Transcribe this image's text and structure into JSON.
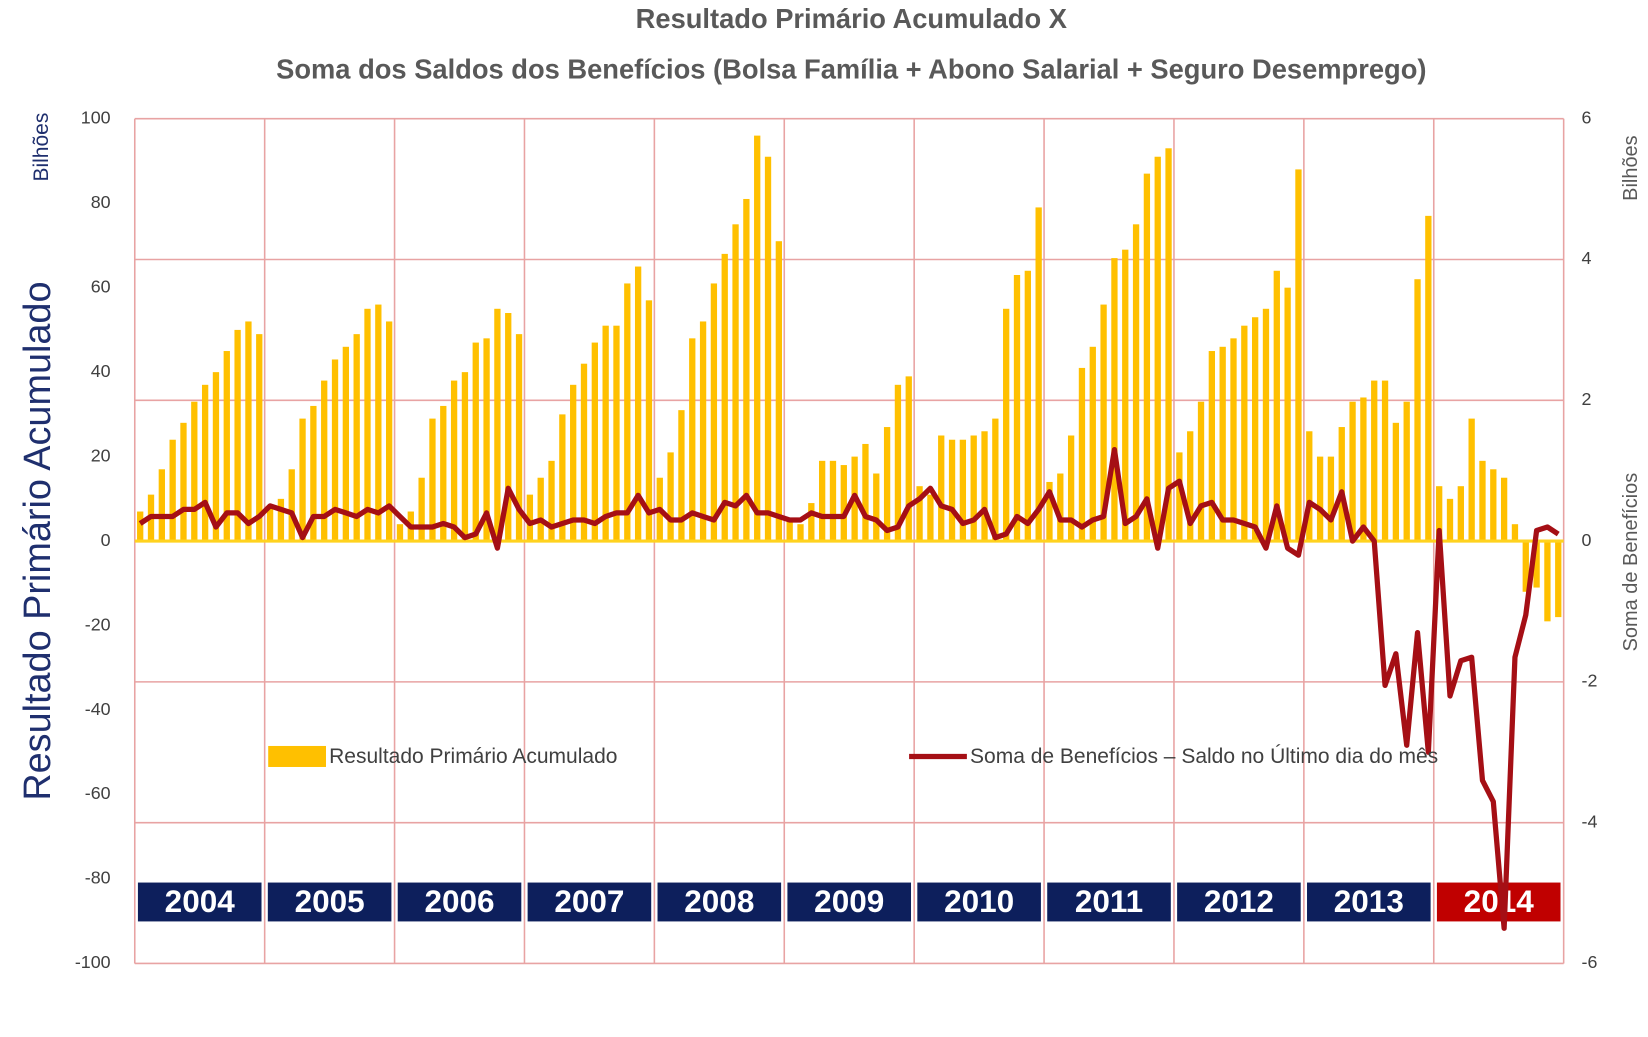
{
  "chart_data": {
    "type": "combo",
    "title": "Resultado Primário Acumulado X",
    "subtitle": "Soma dos Saldos dos Benefícios (Bolsa Família + Abono Salarial + Seguro Desemprego)",
    "ylabel": "Resultado Primário Acumulado",
    "yunit": "Bilhões",
    "y2label": "Soma de Benefícios",
    "y2unit": "Bilhões",
    "ylim": [
      -100,
      100
    ],
    "yticks": [
      100,
      80,
      60,
      40,
      20,
      0,
      -20,
      -40,
      -60,
      -80,
      -100
    ],
    "y2lim": [
      -6,
      6
    ],
    "y2ticks": [
      6,
      4,
      2,
      0,
      -2,
      -4,
      -6
    ],
    "grid": true,
    "grid_color": "#e8a3a3",
    "legend": "bottom",
    "categories": [
      "2004",
      null,
      null,
      null,
      null,
      null,
      null,
      null,
      null,
      null,
      null,
      null,
      "2005",
      null,
      null,
      null,
      null,
      null,
      null,
      null,
      null,
      null,
      null,
      null,
      "2006",
      null,
      null,
      null,
      null,
      null,
      null,
      null,
      null,
      null,
      null,
      null,
      "2007",
      null,
      null,
      null,
      null,
      null,
      null,
      null,
      null,
      null,
      null,
      null,
      "2008",
      null,
      null,
      null,
      null,
      null,
      null,
      null,
      null,
      null,
      null,
      null,
      "2009",
      null,
      null,
      null,
      null,
      null,
      null,
      null,
      null,
      null,
      null,
      null,
      "2010",
      null,
      null,
      null,
      null,
      null,
      null,
      null,
      null,
      null,
      null,
      null,
      "2011",
      null,
      null,
      null,
      null,
      null,
      null,
      null,
      null,
      null,
      null,
      null,
      "2012",
      null,
      null,
      null,
      null,
      null,
      null,
      null,
      null,
      null,
      null,
      null,
      "2013",
      null,
      null,
      null,
      null,
      null,
      null,
      null,
      null,
      null,
      null,
      null,
      "2014",
      null,
      null,
      null,
      null,
      null,
      null,
      null,
      null,
      null,
      null,
      null
    ],
    "category_colors": [
      "#0d1f5c",
      "#0d1f5c",
      "#0d1f5c",
      "#0d1f5c",
      "#0d1f5c",
      "#0d1f5c",
      "#0d1f5c",
      "#0d1f5c",
      "#0d1f5c",
      "#0d1f5c",
      "#c00000"
    ],
    "series": [
      {
        "name": "Resultado Primário Acumulado",
        "type": "bar",
        "color": "#ffc000",
        "values": [
          7,
          11,
          17,
          24,
          28,
          33,
          37,
          40,
          45,
          50,
          52,
          49,
          8,
          10,
          17,
          29,
          32,
          38,
          43,
          46,
          49,
          55,
          56,
          52,
          4,
          7,
          15,
          29,
          32,
          38,
          40,
          47,
          48,
          55,
          54,
          49,
          11,
          15,
          19,
          30,
          37,
          42,
          47,
          51,
          51,
          61,
          65,
          57,
          15,
          21,
          31,
          48,
          52,
          61,
          68,
          75,
          81,
          96,
          91,
          71,
          5,
          4,
          9,
          19,
          19,
          18,
          20,
          23,
          16,
          27,
          37,
          39,
          13,
          11,
          25,
          24,
          24,
          25,
          26,
          29,
          55,
          63,
          64,
          79,
          14,
          16,
          25,
          41,
          46,
          56,
          67,
          69,
          75,
          87,
          91,
          93,
          21,
          26,
          33,
          45,
          46,
          48,
          51,
          53,
          55,
          64,
          60,
          88,
          26,
          20,
          20,
          27,
          33,
          34,
          38,
          38,
          28,
          33,
          62,
          77,
          13,
          10,
          13,
          29,
          19,
          17,
          15,
          4,
          -12,
          -11,
          -19,
          -18
        ]
      },
      {
        "name": "Soma de Benefícios – Saldo no Último dia do mês",
        "type": "line",
        "axis": "y2",
        "color": "#a50f15",
        "values": [
          0.25,
          0.35,
          0.35,
          0.35,
          0.45,
          0.45,
          0.55,
          0.2,
          0.4,
          0.4,
          0.25,
          0.35,
          0.5,
          0.45,
          0.4,
          0.05,
          0.35,
          0.35,
          0.45,
          0.4,
          0.35,
          0.45,
          0.4,
          0.5,
          0.35,
          0.2,
          0.2,
          0.2,
          0.25,
          0.2,
          0.05,
          0.1,
          0.4,
          -0.1,
          0.75,
          0.45,
          0.25,
          0.3,
          0.2,
          0.25,
          0.3,
          0.3,
          0.25,
          0.35,
          0.4,
          0.4,
          0.65,
          0.4,
          0.45,
          0.3,
          0.3,
          0.4,
          0.35,
          0.3,
          0.55,
          0.5,
          0.65,
          0.4,
          0.4,
          0.35,
          0.3,
          0.3,
          0.4,
          0.35,
          0.35,
          0.35,
          0.65,
          0.35,
          0.3,
          0.15,
          0.2,
          0.5,
          0.6,
          0.75,
          0.5,
          0.45,
          0.25,
          0.3,
          0.45,
          0.05,
          0.1,
          0.35,
          0.25,
          0.45,
          0.7,
          0.3,
          0.3,
          0.2,
          0.3,
          0.35,
          1.3,
          0.25,
          0.35,
          0.6,
          -0.1,
          0.75,
          0.85,
          0.25,
          0.5,
          0.55,
          0.3,
          0.3,
          0.25,
          0.2,
          -0.1,
          0.5,
          -0.1,
          -0.2,
          0.55,
          0.45,
          0.3,
          0.7,
          0.0,
          0.2,
          0.0,
          -2.05,
          -1.6,
          -2.9,
          -1.3,
          -3.0,
          0.15,
          -2.2,
          -1.7,
          -1.65,
          -3.4,
          -3.7,
          -5.5,
          -1.65,
          -1.05,
          0.15,
          0.2,
          0.1
        ]
      }
    ]
  }
}
